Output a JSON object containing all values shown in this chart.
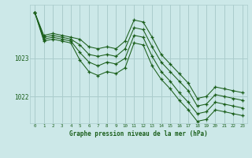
{
  "background_color": "#cce8e8",
  "grid_color": "#aacccc",
  "line_color": "#1a5e1a",
  "marker_color": "#1a5e1a",
  "xlabel": "Graphe pression niveau de la mer (hPa)",
  "xlim": [
    -0.5,
    23.5
  ],
  "ylim": [
    1021.3,
    1024.4
  ],
  "yticks": [
    1022,
    1023
  ],
  "xticks": [
    0,
    1,
    2,
    3,
    4,
    5,
    6,
    7,
    8,
    9,
    10,
    11,
    12,
    13,
    14,
    15,
    16,
    17,
    18,
    19,
    20,
    21,
    22,
    23
  ],
  "series": [
    [
      1024.2,
      1023.6,
      1023.65,
      1023.6,
      1023.55,
      1023.5,
      1023.3,
      1023.25,
      1023.3,
      1023.25,
      1023.45,
      1024.0,
      1023.95,
      1023.55,
      1023.1,
      1022.85,
      1022.6,
      1022.35,
      1021.95,
      1022.0,
      1022.25,
      1022.2,
      1022.15,
      1022.1
    ],
    [
      1024.2,
      1023.55,
      1023.6,
      1023.55,
      1023.5,
      1023.35,
      1023.1,
      1023.05,
      1023.1,
      1023.05,
      1023.25,
      1023.8,
      1023.75,
      1023.3,
      1022.9,
      1022.65,
      1022.4,
      1022.15,
      1021.75,
      1021.8,
      1022.05,
      1022.0,
      1021.95,
      1021.9
    ],
    [
      1024.2,
      1023.5,
      1023.55,
      1023.5,
      1023.45,
      1023.15,
      1022.9,
      1022.8,
      1022.9,
      1022.85,
      1023.0,
      1023.6,
      1023.55,
      1023.05,
      1022.65,
      1022.4,
      1022.1,
      1021.85,
      1021.55,
      1021.6,
      1021.85,
      1021.8,
      1021.75,
      1021.7
    ],
    [
      1024.2,
      1023.45,
      1023.5,
      1023.45,
      1023.4,
      1022.95,
      1022.65,
      1022.55,
      1022.65,
      1022.6,
      1022.75,
      1023.4,
      1023.35,
      1022.8,
      1022.45,
      1022.2,
      1021.9,
      1021.65,
      1021.35,
      1021.4,
      1021.65,
      1021.6,
      1021.55,
      1021.5
    ]
  ]
}
